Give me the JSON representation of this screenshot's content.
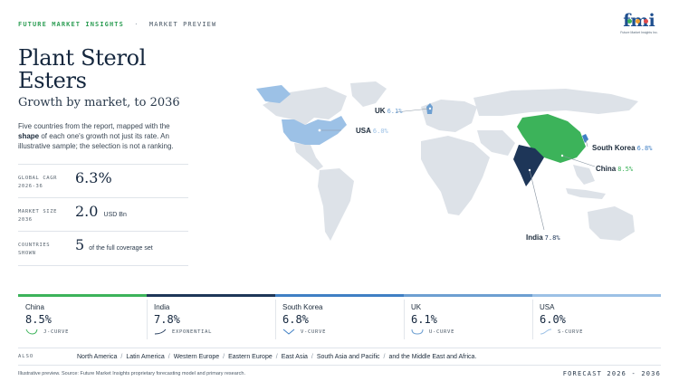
{
  "header": {
    "brand": "FUTURE MARKET INSIGHTS",
    "separator": "·",
    "section": "MARKET PREVIEW",
    "logo_text": "fmi",
    "logo_sub": "Future Market Insights Inc."
  },
  "title_line1": "Plant Sterol",
  "title_line2": "Esters",
  "subtitle": "Growth by market, to 2036",
  "description": {
    "part1": "Five countries from the report, mapped with the ",
    "bold": "shape",
    "part2": " of each one's growth not just its rate. An illustrative sample; the selection is not a ranking."
  },
  "stats": [
    {
      "label": "GLOBAL CAGR 2026-36",
      "value": "6.3%",
      "unit": ""
    },
    {
      "label": "MARKET SIZE 2036",
      "value": "2.0",
      "unit": "USD Bn"
    },
    {
      "label": "COUNTRIES SHOWN",
      "value": "5",
      "unit": "of the full coverage set"
    }
  ],
  "map_labels": [
    {
      "name": "UK",
      "rate": "6.1%"
    },
    {
      "name": "USA",
      "rate": "6.0%"
    },
    {
      "name": "South Korea",
      "rate": "6.8%"
    },
    {
      "name": "China",
      "rate": "8.5%"
    },
    {
      "name": "India",
      "rate": "7.8%"
    }
  ],
  "cards": [
    {
      "name": "China",
      "cagr": "8.5%",
      "shape": "J-CURVE",
      "color": "#3cb35a"
    },
    {
      "name": "India",
      "cagr": "7.8%",
      "shape": "EXPONENTIAL",
      "color": "#1e3658"
    },
    {
      "name": "South Korea",
      "cagr": "6.8%",
      "shape": "V-CURVE",
      "color": "#3f7fc4"
    },
    {
      "name": "UK",
      "cagr": "6.1%",
      "shape": "U-CURVE",
      "color": "#6d9fd1"
    },
    {
      "name": "USA",
      "cagr": "6.0%",
      "shape": "S-CURVE",
      "color": "#9cc1e6"
    }
  ],
  "also": {
    "label": "ALSO",
    "regions": [
      "North America",
      "Latin America",
      "Western Europe",
      "Eastern Europe",
      "East Asia",
      "South Asia and Pacific",
      "and the Middle East and Africa."
    ]
  },
  "footnote": "Illustrative preview. Source: Future Market Insights proprietary forecasting model and primary research.",
  "forecast": "FORECAST 2026 - 2036",
  "colors": {
    "brand_green": "#2e9e55",
    "navy": "#14263d",
    "land": "#dde2e8"
  }
}
